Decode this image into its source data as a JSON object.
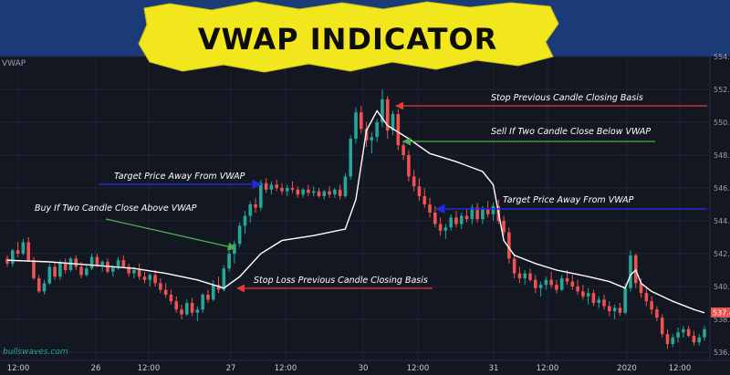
{
  "title": "VWAP INDICATOR",
  "symbol_label": "VWAP",
  "watermark": "bullswaves.com",
  "last_price_label": "537.4",
  "colors": {
    "background": "#131722",
    "up": "#26a69a",
    "down": "#ef5350",
    "vwap": "#ffffff",
    "title_bg": "#f2e61c",
    "band": "#1b3b78",
    "arrow_red": "#e53935",
    "arrow_green": "#4caf50",
    "arrow_blue": "#1e2bd6"
  },
  "annotations": [
    {
      "id": "stop-previous",
      "text": "Stop Previous Candle Closing Basis",
      "color": "red"
    },
    {
      "id": "sell-two",
      "text": "Sell If Two Candle Close Below VWAP",
      "color": "green"
    },
    {
      "id": "target-left",
      "text": "Target Price Away From VWAP",
      "color": "blue"
    },
    {
      "id": "target-right",
      "text": "Target Price Away From VWAP",
      "color": "blue"
    },
    {
      "id": "buy-two",
      "text": "Buy If Two Candle Close Above VWAP",
      "color": "green"
    },
    {
      "id": "stop-loss",
      "text": "Stop Loss Previous Candle Closing Basis",
      "color": "red"
    }
  ],
  "chart_data": {
    "type": "candlestick",
    "title": "VWAP INDICATOR",
    "y_ticks": [
      "554.0",
      "552.0",
      "550.0",
      "548.0",
      "546.0",
      "544.0",
      "542.0",
      "540.0",
      "538.0",
      "536.0"
    ],
    "ylim": [
      535.5,
      554.0
    ],
    "x_ticks": [
      "12:00",
      "26",
      "12:00",
      "27",
      "12:00",
      "30",
      "12:00",
      "31",
      "12:00",
      "2020",
      "12:00"
    ],
    "candles": [
      [
        541.7,
        541.9,
        541.2,
        541.4
      ],
      [
        541.4,
        542.3,
        541.2,
        542.2
      ],
      [
        542.2,
        542.7,
        541.8,
        542.0
      ],
      [
        542.0,
        542.9,
        541.9,
        542.7
      ],
      [
        542.7,
        543.0,
        541.5,
        541.6
      ],
      [
        541.6,
        541.8,
        540.4,
        540.5
      ],
      [
        540.5,
        540.7,
        539.6,
        539.7
      ],
      [
        539.7,
        540.4,
        539.5,
        540.2
      ],
      [
        540.2,
        541.4,
        540.1,
        541.2
      ],
      [
        541.2,
        541.5,
        540.4,
        540.6
      ],
      [
        540.6,
        541.6,
        540.4,
        541.4
      ],
      [
        541.4,
        541.7,
        540.8,
        541.0
      ],
      [
        541.0,
        541.8,
        540.9,
        541.7
      ],
      [
        541.7,
        541.9,
        541.0,
        541.2
      ],
      [
        541.2,
        541.5,
        540.5,
        540.7
      ],
      [
        540.7,
        541.3,
        540.6,
        541.1
      ],
      [
        541.1,
        542.0,
        541.0,
        541.8
      ],
      [
        541.8,
        542.0,
        541.2,
        541.3
      ],
      [
        541.3,
        541.6,
        540.9,
        541.5
      ],
      [
        541.5,
        541.7,
        540.8,
        540.9
      ],
      [
        540.9,
        541.3,
        540.6,
        541.2
      ],
      [
        541.2,
        541.8,
        541.0,
        541.6
      ],
      [
        541.6,
        541.9,
        541.1,
        541.2
      ],
      [
        541.2,
        541.4,
        540.6,
        540.8
      ],
      [
        540.8,
        541.2,
        540.5,
        541.0
      ],
      [
        541.0,
        541.4,
        540.4,
        540.6
      ],
      [
        540.6,
        540.9,
        540.2,
        540.4
      ],
      [
        540.4,
        540.8,
        540.0,
        540.7
      ],
      [
        540.7,
        541.0,
        540.0,
        540.2
      ],
      [
        540.2,
        540.5,
        539.6,
        539.8
      ],
      [
        539.8,
        540.2,
        539.3,
        539.5
      ],
      [
        539.5,
        539.8,
        538.9,
        539.1
      ],
      [
        539.1,
        539.4,
        538.4,
        538.6
      ],
      [
        538.6,
        538.9,
        538.0,
        538.3
      ],
      [
        538.3,
        539.2,
        538.2,
        539.0
      ],
      [
        539.0,
        539.3,
        538.2,
        538.4
      ],
      [
        538.4,
        538.8,
        537.9,
        538.6
      ],
      [
        538.6,
        539.6,
        538.4,
        539.5
      ],
      [
        539.5,
        539.8,
        539.0,
        539.2
      ],
      [
        539.2,
        540.4,
        539.1,
        540.1
      ],
      [
        540.1,
        540.6,
        539.6,
        539.8
      ],
      [
        539.8,
        541.3,
        539.7,
        541.1
      ],
      [
        541.1,
        542.2,
        540.9,
        542.0
      ],
      [
        542.0,
        542.8,
        541.4,
        542.6
      ],
      [
        542.6,
        543.9,
        542.4,
        543.7
      ],
      [
        543.7,
        544.6,
        543.2,
        544.3
      ],
      [
        544.3,
        545.2,
        543.9,
        545.0
      ],
      [
        545.0,
        545.4,
        544.5,
        544.8
      ],
      [
        544.8,
        546.5,
        544.6,
        546.3
      ],
      [
        546.3,
        546.6,
        545.7,
        545.9
      ],
      [
        545.9,
        546.4,
        545.6,
        546.2
      ],
      [
        546.2,
        546.5,
        545.8,
        546.0
      ],
      [
        546.0,
        546.3,
        545.6,
        545.8
      ],
      [
        545.8,
        546.2,
        545.5,
        546.0
      ],
      [
        546.0,
        546.4,
        545.7,
        545.9
      ],
      [
        545.9,
        546.1,
        545.4,
        545.6
      ],
      [
        545.6,
        546.0,
        545.4,
        545.9
      ],
      [
        545.9,
        546.2,
        545.5,
        545.7
      ],
      [
        545.7,
        546.1,
        545.5,
        545.8
      ],
      [
        545.8,
        546.0,
        545.4,
        545.5
      ],
      [
        545.5,
        545.9,
        545.3,
        545.8
      ],
      [
        545.8,
        546.1,
        545.4,
        545.6
      ],
      [
        545.6,
        546.0,
        545.4,
        545.9
      ],
      [
        545.9,
        546.2,
        545.3,
        545.5
      ],
      [
        545.5,
        546.9,
        545.4,
        546.7
      ],
      [
        546.7,
        549.2,
        546.5,
        549.0
      ],
      [
        549.0,
        550.9,
        548.7,
        550.6
      ],
      [
        550.6,
        551.0,
        549.3,
        549.6
      ],
      [
        549.6,
        550.0,
        548.5,
        548.9
      ],
      [
        548.9,
        549.4,
        548.1,
        549.1
      ],
      [
        549.1,
        550.2,
        548.8,
        550.0
      ],
      [
        550.0,
        552.0,
        549.7,
        551.4
      ],
      [
        551.4,
        551.6,
        549.0,
        549.5
      ],
      [
        549.5,
        550.7,
        549.2,
        550.5
      ],
      [
        550.5,
        550.8,
        548.3,
        548.6
      ],
      [
        548.6,
        548.9,
        547.7,
        548.0
      ],
      [
        548.0,
        548.3,
        546.4,
        546.7
      ],
      [
        546.7,
        547.1,
        545.8,
        546.1
      ],
      [
        546.1,
        546.6,
        545.2,
        545.5
      ],
      [
        545.5,
        546.0,
        544.8,
        545.0
      ],
      [
        545.0,
        545.4,
        544.2,
        544.5
      ],
      [
        544.5,
        544.9,
        543.6,
        543.8
      ],
      [
        543.8,
        544.2,
        543.1,
        543.4
      ],
      [
        543.4,
        543.8,
        542.9,
        543.6
      ],
      [
        543.6,
        544.4,
        543.4,
        544.2
      ],
      [
        544.2,
        544.6,
        543.6,
        543.8
      ],
      [
        543.8,
        544.5,
        543.5,
        544.3
      ],
      [
        544.3,
        544.7,
        543.9,
        544.1
      ],
      [
        544.1,
        545.0,
        543.8,
        544.8
      ],
      [
        544.8,
        545.1,
        543.9,
        544.1
      ],
      [
        544.1,
        544.9,
        543.8,
        544.7
      ],
      [
        544.7,
        545.2,
        544.2,
        544.4
      ],
      [
        544.4,
        545.1,
        544.0,
        544.9
      ],
      [
        544.9,
        545.3,
        543.8,
        544.0
      ],
      [
        544.0,
        544.3,
        543.1,
        543.3
      ],
      [
        543.3,
        543.6,
        541.4,
        541.7
      ],
      [
        541.7,
        542.0,
        540.5,
        540.8
      ],
      [
        540.8,
        541.2,
        540.2,
        540.5
      ],
      [
        540.5,
        541.0,
        540.1,
        540.8
      ],
      [
        540.8,
        541.1,
        540.3,
        540.4
      ],
      [
        540.4,
        540.7,
        539.6,
        539.9
      ],
      [
        539.9,
        540.3,
        539.4,
        540.1
      ],
      [
        540.1,
        540.6,
        539.8,
        540.4
      ],
      [
        540.4,
        540.9,
        539.9,
        540.1
      ],
      [
        540.1,
        540.4,
        539.6,
        539.8
      ],
      [
        539.8,
        540.7,
        539.7,
        540.5
      ],
      [
        540.5,
        541.0,
        540.1,
        540.3
      ],
      [
        540.3,
        540.7,
        539.8,
        540.0
      ],
      [
        540.0,
        540.4,
        539.5,
        539.7
      ],
      [
        539.7,
        540.1,
        539.2,
        539.4
      ],
      [
        539.4,
        539.9,
        538.9,
        539.6
      ],
      [
        539.6,
        539.8,
        538.8,
        539.0
      ],
      [
        539.0,
        539.4,
        538.7,
        539.2
      ],
      [
        539.2,
        539.5,
        538.6,
        538.8
      ],
      [
        538.8,
        539.1,
        538.2,
        538.5
      ],
      [
        538.5,
        538.9,
        538.0,
        538.7
      ],
      [
        538.7,
        539.0,
        538.2,
        538.4
      ],
      [
        538.4,
        540.2,
        538.3,
        539.9
      ],
      [
        539.9,
        542.2,
        539.7,
        541.9
      ],
      [
        541.9,
        542.0,
        539.9,
        540.2
      ],
      [
        540.2,
        540.5,
        539.3,
        539.6
      ],
      [
        539.6,
        539.9,
        538.8,
        539.1
      ],
      [
        539.1,
        539.4,
        538.3,
        538.6
      ],
      [
        538.6,
        538.8,
        537.9,
        538.1
      ],
      [
        538.1,
        538.3,
        536.9,
        537.1
      ],
      [
        537.1,
        537.4,
        536.2,
        536.5
      ],
      [
        536.5,
        537.1,
        536.3,
        536.9
      ],
      [
        536.9,
        537.5,
        536.6,
        537.2
      ],
      [
        537.2,
        537.6,
        536.9,
        537.4
      ],
      [
        537.4,
        537.6,
        536.9,
        537.0
      ],
      [
        537.0,
        537.3,
        536.4,
        536.6
      ],
      [
        536.6,
        537.1,
        536.4,
        536.9
      ],
      [
        536.9,
        537.6,
        536.7,
        537.4
      ]
    ],
    "vwap": [
      [
        0,
        541.6
      ],
      [
        8,
        541.5
      ],
      [
        16,
        541.3
      ],
      [
        24,
        541.1
      ],
      [
        30,
        540.8
      ],
      [
        36,
        540.4
      ],
      [
        39,
        540.1
      ],
      [
        41,
        539.9
      ],
      [
        44,
        540.6
      ],
      [
        48,
        542.0
      ],
      [
        52,
        542.8
      ],
      [
        58,
        543.1
      ],
      [
        64,
        543.5
      ],
      [
        66,
        545.3
      ],
      [
        68,
        549.5
      ],
      [
        70,
        550.7
      ],
      [
        72,
        549.8
      ],
      [
        76,
        549.0
      ],
      [
        80,
        548.1
      ],
      [
        85,
        547.6
      ],
      [
        90,
        547.0
      ],
      [
        92,
        546.2
      ],
      [
        94,
        542.8
      ],
      [
        96,
        541.9
      ],
      [
        100,
        541.4
      ],
      [
        104,
        541.0
      ],
      [
        110,
        540.6
      ],
      [
        114,
        540.3
      ],
      [
        117,
        539.9
      ],
      [
        118,
        540.7
      ],
      [
        119,
        541.0
      ],
      [
        120,
        540.2
      ],
      [
        122,
        539.7
      ],
      [
        126,
        539.1
      ],
      [
        130,
        538.6
      ],
      [
        132,
        538.4
      ]
    ]
  }
}
